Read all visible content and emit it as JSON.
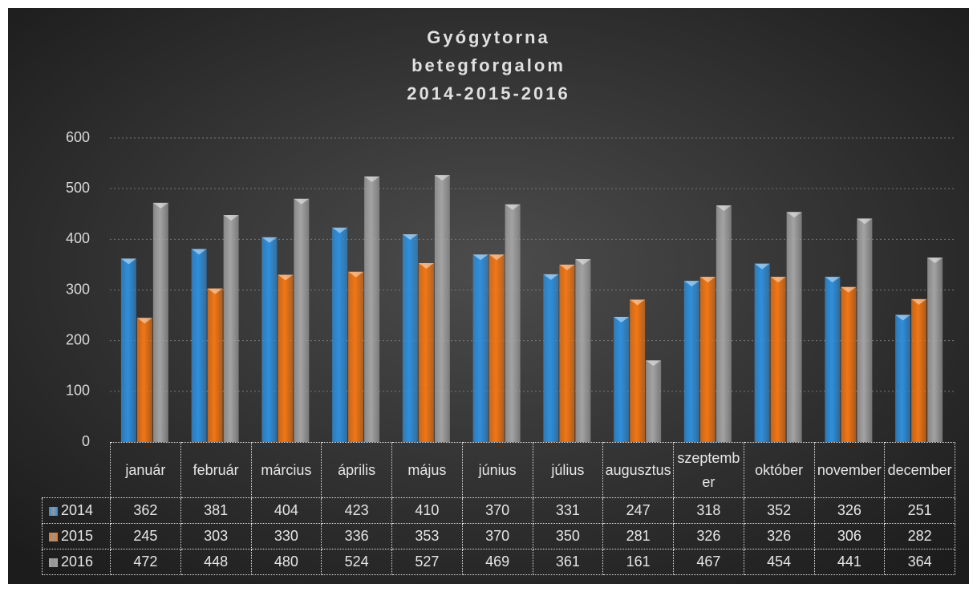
{
  "chart_data": {
    "type": "bar",
    "title": [
      "Gyógytorna",
      "betegforgalom",
      "2014-2015-2016"
    ],
    "categories": [
      "január",
      "február",
      "március",
      "április",
      "május",
      "június",
      "július",
      "augusztus",
      "szeptember",
      "október",
      "november",
      "december"
    ],
    "series": [
      {
        "name": "2014",
        "color": "#2f8fdc",
        "values": [
          362,
          381,
          404,
          423,
          410,
          370,
          331,
          247,
          318,
          352,
          326,
          251
        ]
      },
      {
        "name": "2015",
        "color": "#f27614",
        "values": [
          245,
          303,
          330,
          336,
          353,
          370,
          350,
          281,
          326,
          326,
          306,
          282
        ]
      },
      {
        "name": "2016",
        "color": "#a3a3a3",
        "values": [
          472,
          448,
          480,
          524,
          527,
          469,
          361,
          161,
          467,
          454,
          441,
          364
        ]
      }
    ],
    "ylim": [
      0,
      600
    ],
    "yticks": [
      0,
      100,
      200,
      300,
      400,
      500,
      600
    ],
    "grid": true
  }
}
